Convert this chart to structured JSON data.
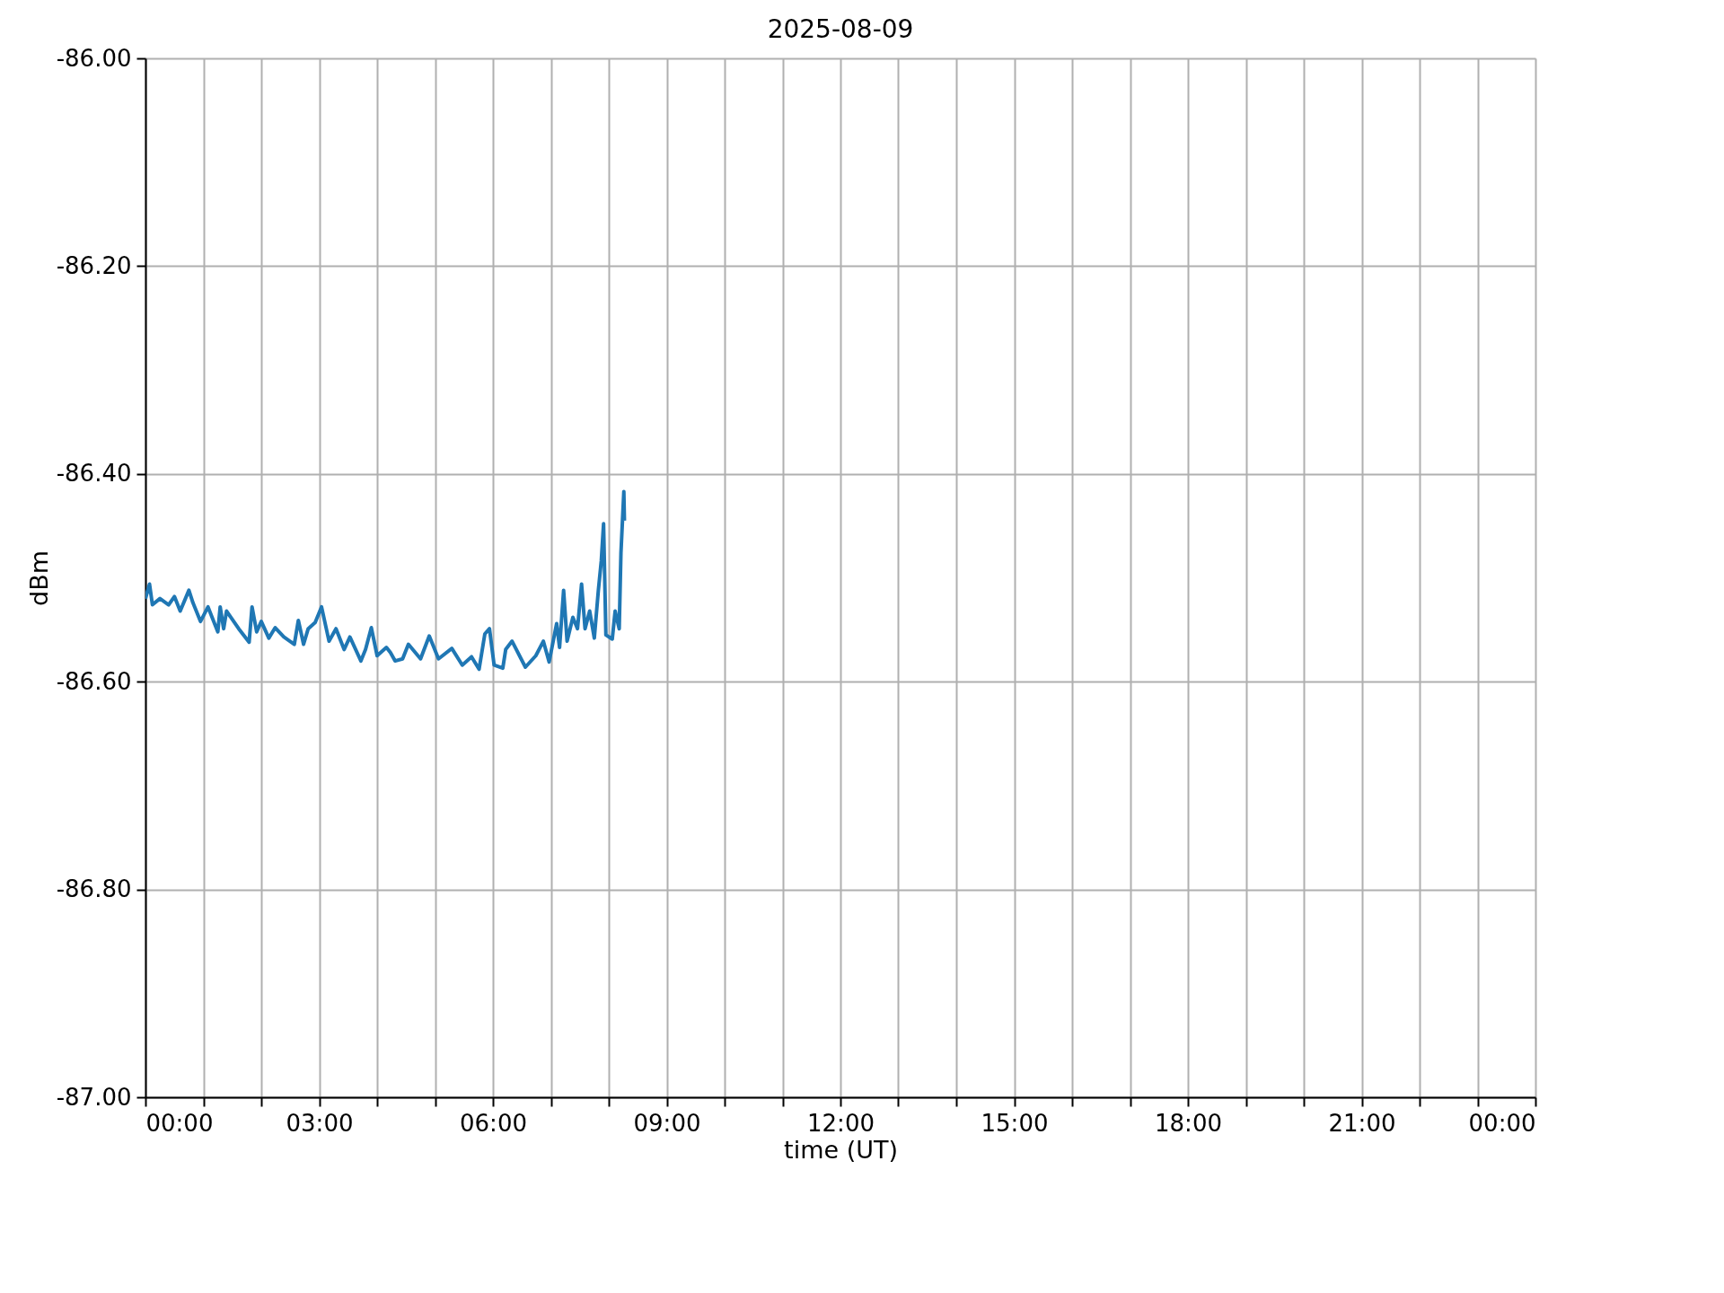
{
  "chart_data": {
    "type": "line",
    "title": "2025-08-09",
    "xlabel": "time (UT)",
    "ylabel": "dBm",
    "x": [
      0.0,
      0.07,
      0.12,
      0.25,
      0.4,
      0.5,
      0.6,
      0.75,
      0.82,
      0.95,
      1.08,
      1.25,
      1.29,
      1.35,
      1.4,
      1.61,
      1.79,
      1.84,
      1.92,
      2.0,
      2.13,
      2.24,
      2.39,
      2.57,
      2.64,
      2.73,
      2.81,
      2.93,
      3.04,
      3.17,
      3.29,
      3.43,
      3.53,
      3.72,
      3.8,
      3.9,
      4.0,
      4.16,
      4.23,
      4.31,
      4.44,
      4.54,
      4.75,
      4.9,
      5.06,
      5.29,
      5.47,
      5.63,
      5.76,
      5.86,
      5.94,
      6.02,
      6.17,
      6.22,
      6.33,
      6.56,
      6.74,
      6.87,
      6.97,
      7.1,
      7.15,
      7.22,
      7.28,
      7.38,
      7.46,
      7.53,
      7.59,
      7.67,
      7.75,
      7.82,
      7.87,
      7.91,
      7.95,
      8.06,
      8.11,
      8.18,
      8.21,
      8.26,
      8.27
    ],
    "series": [
      {
        "color": "#1f77b4",
        "values": [
          -86.52,
          -86.506,
          -86.526,
          -86.52,
          -86.526,
          -86.518,
          -86.532,
          -86.512,
          -86.524,
          -86.542,
          -86.528,
          -86.552,
          -86.528,
          -86.549,
          -86.532,
          -86.549,
          -86.562,
          -86.528,
          -86.552,
          -86.542,
          -86.558,
          -86.548,
          -86.557,
          -86.564,
          -86.541,
          -86.564,
          -86.549,
          -86.543,
          -86.528,
          -86.561,
          -86.549,
          -86.569,
          -86.557,
          -86.58,
          -86.569,
          -86.548,
          -86.575,
          -86.567,
          -86.572,
          -86.58,
          -86.578,
          -86.564,
          -86.578,
          -86.556,
          -86.578,
          -86.568,
          -86.584,
          -86.576,
          -86.588,
          -86.554,
          -86.549,
          -86.584,
          -86.587,
          -86.569,
          -86.561,
          -86.586,
          -86.575,
          -86.561,
          -86.581,
          -86.544,
          -86.567,
          -86.512,
          -86.561,
          -86.538,
          -86.549,
          -86.506,
          -86.549,
          -86.532,
          -86.558,
          -86.512,
          -86.484,
          -86.448,
          -86.555,
          -86.559,
          -86.532,
          -86.549,
          -86.476,
          -86.417,
          -86.445
        ]
      }
    ],
    "xlim": [
      0,
      24
    ],
    "xticks": [
      {
        "value": 0,
        "label": "00:00"
      },
      {
        "value": 1,
        "label": null
      },
      {
        "value": 2,
        "label": null
      },
      {
        "value": 3,
        "label": "03:00"
      },
      {
        "value": 4,
        "label": null
      },
      {
        "value": 5,
        "label": null
      },
      {
        "value": 6,
        "label": "06:00"
      },
      {
        "value": 7,
        "label": null
      },
      {
        "value": 8,
        "label": null
      },
      {
        "value": 9,
        "label": "09:00"
      },
      {
        "value": 10,
        "label": null
      },
      {
        "value": 11,
        "label": null
      },
      {
        "value": 12,
        "label": "12:00"
      },
      {
        "value": 13,
        "label": null
      },
      {
        "value": 14,
        "label": null
      },
      {
        "value": 15,
        "label": "15:00"
      },
      {
        "value": 16,
        "label": null
      },
      {
        "value": 17,
        "label": null
      },
      {
        "value": 18,
        "label": "18:00"
      },
      {
        "value": 19,
        "label": null
      },
      {
        "value": 20,
        "label": null
      },
      {
        "value": 21,
        "label": "21:00"
      },
      {
        "value": 22,
        "label": null
      },
      {
        "value": 23,
        "label": null
      },
      {
        "value": 24,
        "label": "00:00"
      }
    ],
    "ylim": [
      -87,
      -86
    ],
    "yticks": [
      {
        "value": -87,
        "label": "-87.00"
      },
      {
        "value": -86.8,
        "label": "-86.80"
      },
      {
        "value": -86.6,
        "label": "-86.60"
      },
      {
        "value": -86.4,
        "label": "-86.40"
      },
      {
        "value": -86.2,
        "label": "-86.20"
      },
      {
        "value": -86,
        "label": "-86.00"
      }
    ],
    "grid": true
  }
}
